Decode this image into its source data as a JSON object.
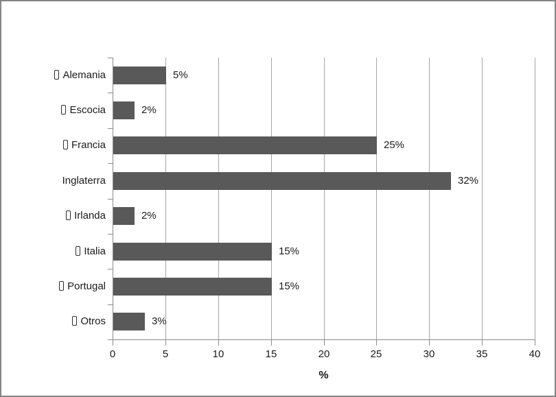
{
  "chart_data": {
    "type": "bar",
    "orientation": "horizontal",
    "categories": [
      "Alemania",
      "Escocia",
      "Francia",
      "Inglaterra",
      "Irlanda",
      "Italia",
      "Portugal",
      "Otros"
    ],
    "values": [
      5,
      2,
      25,
      32,
      2,
      15,
      15,
      3
    ],
    "data_labels": [
      "5%",
      "2%",
      "25%",
      "32%",
      "2%",
      "15%",
      "15%",
      "3%"
    ],
    "category_bullet_icon": "missing-glyph-box",
    "category_has_bullet": [
      true,
      true,
      true,
      false,
      true,
      true,
      true,
      true
    ],
    "title": "",
    "xlabel": "%",
    "ylabel": "",
    "xlim": [
      0,
      40
    ],
    "x_ticks": [
      "0",
      "5",
      "10",
      "15",
      "20",
      "25",
      "30",
      "35",
      "40"
    ],
    "grid": "vertical-on",
    "legend": "none",
    "colors": {
      "bar": "#595959",
      "gridline": "#a6a6a6",
      "axis": "#8a8a8a",
      "text": "#1a1a1a",
      "frame_border": "#848484",
      "background": "#ffffff"
    }
  }
}
